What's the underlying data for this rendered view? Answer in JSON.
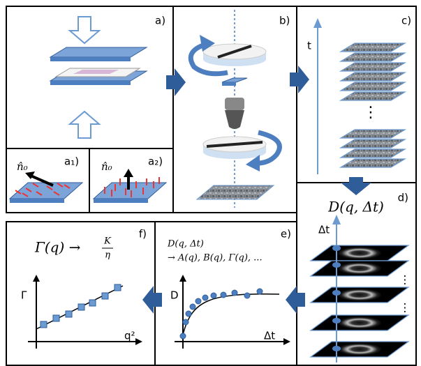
{
  "panels": {
    "a": {
      "label": "a)"
    },
    "a1": {
      "label": "a₁)",
      "director": "n̂₀"
    },
    "a2": {
      "label": "a₂)",
      "director": "n̂₀"
    },
    "b": {
      "label": "b)"
    },
    "c": {
      "label": "c)",
      "axis": "t",
      "ellipsis": "⋮"
    },
    "d": {
      "label": "d)",
      "title": "D(q, Δt)",
      "axis": "Δt",
      "ellipsis": "⋮"
    },
    "e": {
      "label": "e)",
      "formula_line1": "D(q, Δt)",
      "formula_line2": "→ A(q), B(q), Γ(q), ...",
      "y_axis": "D",
      "x_axis": "Δt"
    },
    "f": {
      "label": "f)",
      "formula": "Γ(q) →",
      "numerator": "K",
      "denominator": "η",
      "y_axis": "Γ",
      "x_axis": "q²"
    }
  }
}
